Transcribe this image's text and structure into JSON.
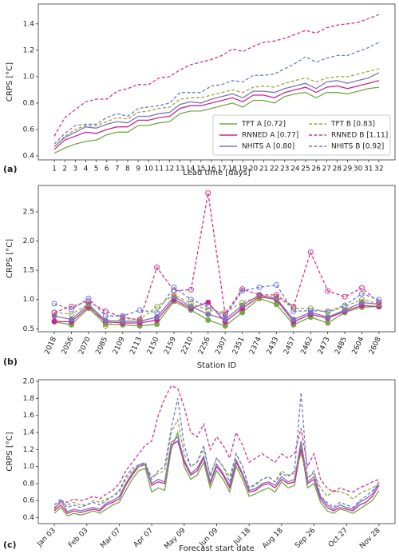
{
  "chart_data": [
    {
      "type": "line",
      "panel_label": "(a)",
      "xlabel": "Lead time [days]",
      "ylabel": "CRPS [°C]",
      "legend": "lower right",
      "categories": [
        "1",
        "2",
        "3",
        "4",
        "5",
        "6",
        "7",
        "8",
        "9",
        "10",
        "11",
        "12",
        "13",
        "14",
        "15",
        "16",
        "17",
        "18",
        "19",
        "20",
        "21",
        "22",
        "23",
        "24",
        "25",
        "26",
        "27",
        "28",
        "29",
        "30",
        "31",
        "32"
      ],
      "ylim": [
        0.37,
        1.55
      ],
      "yticks": [
        0.4,
        0.6,
        0.8,
        {
          "value": 1,
          "label": "1.0"
        },
        1.2,
        1.4
      ],
      "series": [
        {
          "name": "TFT A [0.72]",
          "color": "#74a845",
          "dashed": false,
          "values": [
            0.42,
            0.46,
            0.49,
            0.51,
            0.52,
            0.56,
            0.58,
            0.58,
            0.63,
            0.63,
            0.65,
            0.66,
            0.72,
            0.74,
            0.74,
            0.76,
            0.78,
            0.8,
            0.77,
            0.82,
            0.82,
            0.8,
            0.85,
            0.87,
            0.88,
            0.84,
            0.88,
            0.88,
            0.87,
            0.89,
            0.91,
            0.92
          ]
        },
        {
          "name": "RNNED A [0.77]",
          "color": "#c8288e",
          "dashed": false,
          "values": [
            0.45,
            0.52,
            0.55,
            0.58,
            0.57,
            0.6,
            0.62,
            0.62,
            0.67,
            0.67,
            0.69,
            0.7,
            0.76,
            0.78,
            0.78,
            0.8,
            0.82,
            0.84,
            0.81,
            0.86,
            0.86,
            0.84,
            0.88,
            0.9,
            0.92,
            0.88,
            0.92,
            0.93,
            0.91,
            0.93,
            0.95,
            0.97
          ]
        },
        {
          "name": "NHITS A [0.80]",
          "color": "#7e72b8",
          "dashed": false,
          "values": [
            0.47,
            0.54,
            0.58,
            0.62,
            0.61,
            0.64,
            0.66,
            0.65,
            0.7,
            0.7,
            0.72,
            0.73,
            0.79,
            0.81,
            0.8,
            0.83,
            0.85,
            0.87,
            0.84,
            0.89,
            0.89,
            0.88,
            0.91,
            0.93,
            0.95,
            0.91,
            0.96,
            0.97,
            0.95,
            0.97,
            0.99,
            1.03
          ]
        },
        {
          "name": "TFT B [0.83]",
          "color": "#98a83a",
          "dashed": true,
          "values": [
            0.47,
            0.55,
            0.6,
            0.63,
            0.63,
            0.66,
            0.69,
            0.68,
            0.73,
            0.74,
            0.76,
            0.77,
            0.83,
            0.84,
            0.84,
            0.86,
            0.88,
            0.9,
            0.88,
            0.92,
            0.93,
            0.92,
            0.95,
            0.97,
            0.99,
            0.96,
            0.99,
            1.0,
            1.0,
            1.02,
            1.04,
            1.06
          ]
        },
        {
          "name": "RNNED B [1.11]",
          "color": "#d4338f",
          "dashed": true,
          "values": [
            0.55,
            0.69,
            0.75,
            0.81,
            0.83,
            0.83,
            0.89,
            0.91,
            0.94,
            0.94,
            0.99,
            1.0,
            1.05,
            1.09,
            1.11,
            1.13,
            1.16,
            1.21,
            1.19,
            1.23,
            1.26,
            1.27,
            1.29,
            1.32,
            1.35,
            1.33,
            1.37,
            1.39,
            1.4,
            1.41,
            1.44,
            1.47
          ]
        },
        {
          "name": "NHITS B [0.92]",
          "color": "#6f7ad0",
          "dashed": true,
          "values": [
            0.49,
            0.57,
            0.63,
            0.64,
            0.64,
            0.69,
            0.72,
            0.7,
            0.76,
            0.77,
            0.78,
            0.8,
            0.88,
            0.88,
            0.88,
            0.93,
            0.94,
            0.97,
            0.96,
            1.01,
            1.01,
            1.02,
            1.06,
            1.1,
            1.15,
            1.11,
            1.14,
            1.16,
            1.16,
            1.19,
            1.22,
            1.26
          ]
        }
      ]
    },
    {
      "type": "line",
      "panel_label": "(b)",
      "xlabel": "Station ID",
      "ylabel": "CRPS [°C]",
      "markers": true,
      "categories": [
        "2018",
        "2056",
        "2070",
        "2085",
        "2109",
        "2113",
        "2150",
        "2159",
        "2210",
        "2256",
        "2307",
        "2351",
        "2374",
        "2433",
        "2457",
        "2462",
        "2473",
        "2485",
        "2604",
        "2608"
      ],
      "ylim": [
        0.45,
        2.95
      ],
      "yticks": [
        0.5,
        {
          "value": 1,
          "label": "1.0"
        },
        1.5,
        {
          "value": 2,
          "label": "2.0"
        },
        2.5
      ],
      "series": [
        {
          "color": "#74a845",
          "dashed": false,
          "values": [
            0.62,
            0.57,
            0.85,
            0.58,
            0.57,
            0.55,
            0.58,
            0.97,
            0.82,
            0.65,
            0.55,
            0.78,
            1.02,
            0.92,
            0.57,
            0.7,
            0.6,
            0.78,
            0.87,
            0.88
          ]
        },
        {
          "color": "#c8288e",
          "dashed": false,
          "values": [
            0.63,
            0.62,
            0.88,
            0.62,
            0.6,
            0.6,
            0.65,
            1.0,
            0.85,
            0.95,
            0.62,
            0.85,
            1.05,
            1.0,
            0.62,
            0.75,
            0.68,
            0.8,
            0.9,
            0.88
          ]
        },
        {
          "color": "#7e72b8",
          "dashed": false,
          "values": [
            0.72,
            0.66,
            0.92,
            0.64,
            0.63,
            0.63,
            0.7,
            1.05,
            0.88,
            0.75,
            0.66,
            0.9,
            1.08,
            1.02,
            0.66,
            0.78,
            0.7,
            0.82,
            0.95,
            0.92
          ]
        },
        {
          "color": "#98a83a",
          "dashed": true,
          "values": [
            0.78,
            0.75,
            0.92,
            0.55,
            0.68,
            0.66,
            0.88,
            1.08,
            0.93,
            0.82,
            0.78,
            0.95,
            1.05,
            1.05,
            0.85,
            0.85,
            0.78,
            0.88,
            1.0,
            0.93
          ]
        },
        {
          "color": "#d4338f",
          "dashed": true,
          "values": [
            0.78,
            0.88,
            0.97,
            0.8,
            0.7,
            0.65,
            1.55,
            1.15,
            1.17,
            2.82,
            0.75,
            1.18,
            1.08,
            1.08,
            0.88,
            1.81,
            1.15,
            1.05,
            1.2,
            0.95
          ]
        },
        {
          "color": "#6f7ad0",
          "dashed": true,
          "values": [
            0.93,
            0.83,
            1.02,
            0.72,
            0.72,
            0.82,
            0.78,
            1.21,
            1.0,
            0.88,
            0.72,
            1.15,
            1.21,
            1.25,
            0.8,
            0.81,
            0.8,
            0.9,
            1.1,
            1.0
          ]
        }
      ]
    },
    {
      "type": "line",
      "panel_label": "(c)",
      "xlabel": "Forecast start date",
      "ylabel": "CRPS [°C]",
      "categories": [
        "Jan 03",
        null,
        null,
        null,
        null,
        "Feb 03",
        null,
        null,
        null,
        null,
        "Mar 07",
        null,
        null,
        null,
        null,
        "Apr 07",
        null,
        null,
        null,
        null,
        "May 09",
        null,
        null,
        null,
        null,
        "Jun 09",
        null,
        null,
        null,
        null,
        "Jul 18",
        null,
        null,
        null,
        null,
        "Aug 18",
        null,
        null,
        null,
        null,
        "Sep 26",
        null,
        null,
        null,
        null,
        "Oct 27",
        null,
        null,
        null,
        null,
        "Nov 28"
      ],
      "ylim": [
        0.33,
        2.02
      ],
      "yticks": [
        0.4,
        0.6,
        0.8,
        {
          "value": 1,
          "label": "1.0"
        },
        1.2,
        1.4,
        1.6,
        1.8,
        {
          "value": 2,
          "label": "2.0"
        }
      ],
      "series": [
        {
          "color": "#74a845",
          "dashed": false,
          "values": [
            0.45,
            0.52,
            0.42,
            0.45,
            0.43,
            0.45,
            0.48,
            0.45,
            0.5,
            0.55,
            0.58,
            0.72,
            0.85,
            0.95,
            0.98,
            0.7,
            0.75,
            0.72,
            1.2,
            1.4,
            1.0,
            0.85,
            0.9,
            1.05,
            0.75,
            0.95,
            0.85,
            0.7,
            1.0,
            0.85,
            0.65,
            0.68,
            0.72,
            0.75,
            0.7,
            0.82,
            0.75,
            0.78,
            1.25,
            0.75,
            0.8,
            0.58,
            0.48,
            0.45,
            0.5,
            0.48,
            0.45,
            0.5,
            0.55,
            0.6,
            0.72
          ]
        },
        {
          "color": "#c8288e",
          "dashed": false,
          "values": [
            0.48,
            0.55,
            0.45,
            0.48,
            0.46,
            0.48,
            0.5,
            0.48,
            0.55,
            0.58,
            0.62,
            0.78,
            0.9,
            1.0,
            1.02,
            0.78,
            0.82,
            0.8,
            1.25,
            1.3,
            1.05,
            0.9,
            0.95,
            1.1,
            0.8,
            1.0,
            0.9,
            0.75,
            1.05,
            0.9,
            0.7,
            0.72,
            0.78,
            0.8,
            0.75,
            0.85,
            0.8,
            0.82,
            1.2,
            0.8,
            0.85,
            0.62,
            0.52,
            0.48,
            0.52,
            0.5,
            0.48,
            0.55,
            0.58,
            0.65,
            0.78
          ]
        },
        {
          "color": "#7e72b8",
          "dashed": false,
          "values": [
            0.5,
            0.6,
            0.47,
            0.5,
            0.48,
            0.5,
            0.52,
            0.5,
            0.57,
            0.6,
            0.65,
            0.8,
            0.92,
            1.02,
            1.03,
            0.8,
            0.85,
            0.82,
            1.28,
            1.35,
            1.08,
            0.92,
            0.98,
            1.12,
            0.82,
            1.03,
            0.92,
            0.78,
            1.08,
            0.92,
            0.72,
            0.74,
            0.8,
            0.82,
            0.78,
            0.88,
            0.82,
            0.85,
            1.3,
            0.82,
            0.88,
            0.65,
            0.55,
            0.5,
            0.55,
            0.52,
            0.5,
            0.58,
            0.62,
            0.68,
            0.82
          ]
        },
        {
          "color": "#98a83a",
          "dashed": true,
          "values": [
            0.52,
            0.58,
            0.55,
            0.58,
            0.55,
            0.55,
            0.6,
            0.58,
            0.62,
            0.65,
            0.7,
            0.85,
            0.95,
            1.0,
            1.02,
            0.88,
            0.92,
            0.95,
            1.4,
            1.55,
            1.15,
            1.0,
            1.05,
            1.2,
            0.9,
            1.1,
            1.0,
            0.88,
            1.15,
            1.0,
            0.75,
            0.78,
            0.85,
            0.88,
            0.82,
            0.95,
            0.9,
            0.92,
            1.15,
            0.88,
            0.92,
            0.75,
            0.65,
            0.72,
            0.7,
            0.68,
            0.62,
            0.68,
            0.72,
            0.75,
            0.8
          ]
        },
        {
          "color": "#d4338f",
          "dashed": true,
          "values": [
            0.5,
            0.6,
            0.58,
            0.62,
            0.6,
            0.62,
            0.65,
            0.62,
            0.68,
            0.72,
            0.8,
            0.95,
            1.05,
            1.15,
            1.25,
            1.3,
            1.6,
            1.8,
            1.95,
            1.92,
            1.7,
            1.4,
            1.35,
            1.5,
            1.2,
            1.35,
            1.25,
            1.1,
            1.4,
            1.25,
            1.05,
            1.1,
            1.15,
            1.1,
            1.05,
            1.15,
            1.1,
            1.15,
            1.45,
            1.0,
            1.15,
            0.85,
            0.75,
            0.7,
            0.75,
            0.72,
            0.7,
            0.75,
            0.78,
            0.82,
            0.85
          ]
        },
        {
          "color": "#6f7ad0",
          "dashed": true,
          "values": [
            0.55,
            0.62,
            0.52,
            0.55,
            0.52,
            0.55,
            0.58,
            0.55,
            0.6,
            0.65,
            0.72,
            0.88,
            0.98,
            1.02,
            1.05,
            0.85,
            0.95,
            1.0,
            1.45,
            1.8,
            1.25,
            1.0,
            1.05,
            1.25,
            0.88,
            1.1,
            1.0,
            0.82,
            1.15,
            1.0,
            0.75,
            0.8,
            0.85,
            0.88,
            0.82,
            0.92,
            0.88,
            0.95,
            1.87,
            0.85,
            0.95,
            0.65,
            0.58,
            0.52,
            0.58,
            0.55,
            0.52,
            0.6,
            0.65,
            0.72,
            0.78
          ]
        }
      ]
    }
  ]
}
